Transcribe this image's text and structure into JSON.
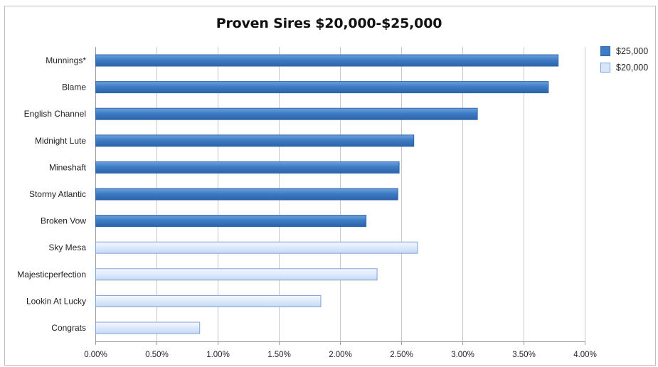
{
  "chart_data": {
    "type": "bar",
    "orientation": "horizontal",
    "title": "Proven Sires $20,000-$25,000",
    "xlabel": "",
    "ylabel": "",
    "xlim": [
      0,
      4.0
    ],
    "x_ticks": [
      "0.00%",
      "0.50%",
      "1.00%",
      "1.50%",
      "2.00%",
      "2.50%",
      "3.00%",
      "3.50%",
      "4.00%"
    ],
    "grid": "vertical",
    "legend_position": "top-right",
    "categories": [
      "Munnings*",
      "Blame",
      "English Channel",
      "Midnight Lute",
      "Mineshaft",
      "Stormy Atlantic",
      "Broken Vow",
      "Sky Mesa",
      "Majesticperfection",
      "Lookin At Lucky",
      "Congrats"
    ],
    "values": [
      3.78,
      3.7,
      3.12,
      2.6,
      2.48,
      2.47,
      2.21,
      2.63,
      2.3,
      1.84,
      0.85
    ],
    "bar_series": [
      "$25,000",
      "$25,000",
      "$25,000",
      "$25,000",
      "$25,000",
      "$25,000",
      "$25,000",
      "$20,000",
      "$20,000",
      "$20,000",
      "$20,000"
    ],
    "series": [
      {
        "name": "$25,000",
        "color": "#3e7cc5"
      },
      {
        "name": "$20,000",
        "color": "#d6e6fb"
      }
    ]
  }
}
